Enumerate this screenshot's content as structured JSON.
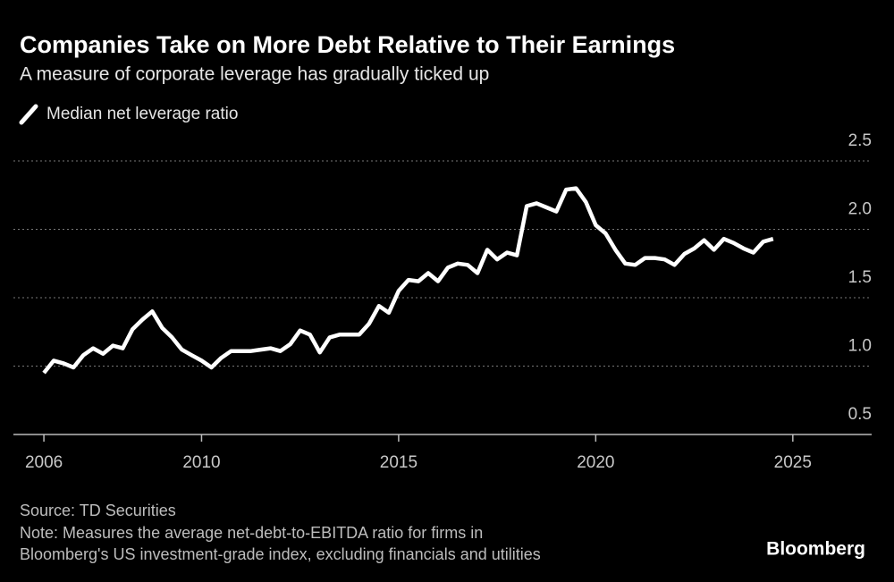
{
  "chart_data": {
    "type": "line",
    "title": "Companies Take on More Debt Relative to Their Earnings",
    "subtitle": "A measure of corporate leverage has gradually ticked up",
    "x": [
      2006,
      2006.25,
      2006.5,
      2006.75,
      2007,
      2007.25,
      2007.5,
      2007.75,
      2008,
      2008.25,
      2008.5,
      2008.75,
      2009,
      2009.25,
      2009.5,
      2009.75,
      2010,
      2010.25,
      2010.5,
      2010.75,
      2011,
      2011.25,
      2011.5,
      2011.75,
      2012,
      2012.25,
      2012.5,
      2012.75,
      2013,
      2013.25,
      2013.5,
      2013.75,
      2014,
      2014.25,
      2014.5,
      2014.75,
      2015,
      2015.25,
      2015.5,
      2015.75,
      2016,
      2016.25,
      2016.5,
      2016.75,
      2017,
      2017.25,
      2017.5,
      2017.75,
      2018,
      2018.25,
      2018.5,
      2018.75,
      2019,
      2019.25,
      2019.5,
      2019.75,
      2020,
      2020.25,
      2020.5,
      2020.75,
      2021,
      2021.25,
      2021.5,
      2021.75,
      2022,
      2022.25,
      2022.5,
      2022.75,
      2023,
      2023.25,
      2023.5,
      2023.75,
      2024,
      2024.25,
      2024.5
    ],
    "series": [
      {
        "name": "Median net leverage ratio",
        "color": "#ffffff",
        "values": [
          0.95,
          1.04,
          1.02,
          0.99,
          1.08,
          1.13,
          1.09,
          1.15,
          1.13,
          1.27,
          1.34,
          1.4,
          1.28,
          1.21,
          1.12,
          1.08,
          1.04,
          0.99,
          1.06,
          1.11,
          1.11,
          1.11,
          1.12,
          1.13,
          1.11,
          1.16,
          1.26,
          1.23,
          1.1,
          1.21,
          1.23,
          1.23,
          1.23,
          1.31,
          1.44,
          1.39,
          1.55,
          1.63,
          1.62,
          1.68,
          1.62,
          1.72,
          1.75,
          1.74,
          1.68,
          1.85,
          1.78,
          1.83,
          1.81,
          2.17,
          2.19,
          2.16,
          2.13,
          2.29,
          2.3,
          2.2,
          2.03,
          1.97,
          1.85,
          1.75,
          1.74,
          1.79,
          1.79,
          1.78,
          1.74,
          1.82,
          1.86,
          1.92,
          1.85,
          1.93,
          1.9,
          1.86,
          1.83,
          1.91,
          1.93
        ]
      }
    ],
    "xlim": [
      2005,
      2027
    ],
    "xticks": [
      2006,
      2010,
      2015,
      2020,
      2025
    ],
    "ylim": [
      0.5,
      2.5
    ],
    "yticks": [
      0.5,
      {
        "value": 1.0,
        "label": "1.0"
      },
      1.5,
      {
        "value": 2.0,
        "label": "2.0"
      },
      2.5
    ],
    "grid": true,
    "source": "Source: TD Securities",
    "note": [
      "Note: Measures the average net-debt-to-EBITDA ratio for firms in",
      "Bloomberg's US investment-grade index, excluding financials and utilities"
    ],
    "brand": "Bloomberg"
  }
}
